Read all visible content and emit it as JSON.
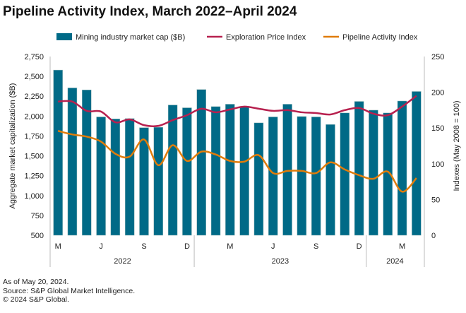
{
  "chart_data": {
    "type": "bar",
    "title": "Pipeline Activity Index, March 2022–April 2024",
    "ylabel": "Aggregate market capitalization ($B)",
    "y2label": "Indexes (May 2008 = 100)",
    "ylim": [
      500,
      2750
    ],
    "y2lim": [
      0,
      250
    ],
    "yticks": [
      "2,750",
      "2,500",
      "2,250",
      "2,000",
      "1,750",
      "1,500",
      "1,250",
      "1,000",
      "750",
      "500"
    ],
    "y2ticks": [
      "250",
      "200",
      "150",
      "100",
      "50",
      "0"
    ],
    "month_labels": [
      {
        "i": 0,
        "t": "M"
      },
      {
        "i": 3,
        "t": "J"
      },
      {
        "i": 6,
        "t": "S"
      },
      {
        "i": 9,
        "t": "D"
      },
      {
        "i": 12,
        "t": "M"
      },
      {
        "i": 15,
        "t": "J"
      },
      {
        "i": 18,
        "t": "S"
      },
      {
        "i": 21,
        "t": "D"
      },
      {
        "i": 24,
        "t": "M"
      }
    ],
    "years": [
      {
        "start": 0,
        "end": 9,
        "t": "2022"
      },
      {
        "start": 10,
        "end": 21,
        "t": "2023"
      },
      {
        "start": 22,
        "end": 25,
        "t": "2024"
      }
    ],
    "legend": [
      "Mining industry market cap ($B)",
      "Exploration Price Index",
      "Pipeline Activity Index"
    ],
    "colors": {
      "bar": "#006a87",
      "exploration": "#b7214f",
      "pipeline": "#e07c0a"
    },
    "series": [
      {
        "name": "Mining industry market cap ($B)",
        "axis": "left",
        "values": [
          2580,
          2355,
          2330,
          1990,
          1965,
          1970,
          1855,
          1860,
          2140,
          2105,
          2335,
          2120,
          2150,
          2120,
          1915,
          1990,
          2150,
          1995,
          1990,
          1895,
          2040,
          2185,
          2075,
          2040,
          2190,
          2310
        ]
      },
      {
        "name": "Exploration Price Index",
        "axis": "right",
        "values": [
          187,
          187,
          174,
          173,
          158,
          162,
          154,
          153,
          161,
          168,
          177,
          172,
          176,
          180,
          177,
          174,
          175,
          172,
          171,
          169,
          175,
          178,
          170,
          168,
          180,
          195
        ]
      },
      {
        "name": "Pipeline Activity Index",
        "axis": "right",
        "values": [
          146,
          141,
          138,
          131,
          114,
          110,
          134,
          98,
          126,
          104,
          117,
          113,
          104,
          103,
          112,
          87,
          90,
          90,
          87,
          102,
          92,
          84,
          79,
          89,
          61,
          80
        ]
      }
    ]
  },
  "notes": [
    "As of May 20, 2024.",
    "Source: S&P Global Market Intelligence.",
    "© 2024 S&P Global."
  ]
}
